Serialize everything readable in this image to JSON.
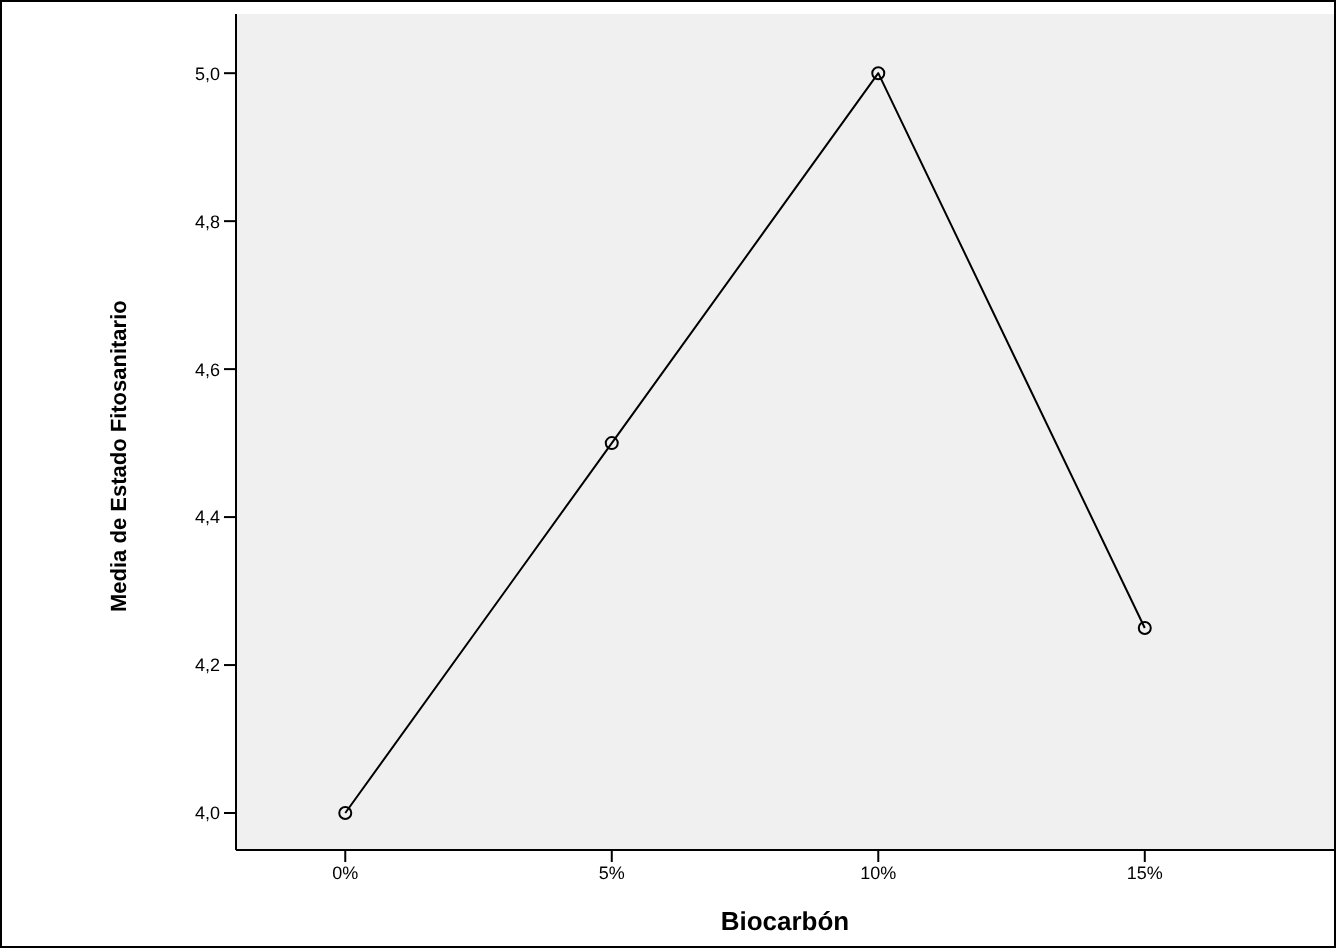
{
  "chart_data": {
    "type": "line",
    "xlabel": "Biocarbón",
    "ylabel": "Media de Estado Fitosanitario",
    "categories": [
      "0%",
      "5%",
      "10%",
      "15%"
    ],
    "series": [
      {
        "color": "#000000",
        "values": [
          4.0,
          4.5,
          5.0,
          4.25
        ]
      }
    ],
    "ylim": [
      3.95,
      5.08
    ],
    "yticks": [
      {
        "value": 4.0,
        "label": "4,0"
      },
      {
        "value": 4.2,
        "label": "4,2"
      },
      {
        "value": 4.4,
        "label": "4,4"
      },
      {
        "value": 4.6,
        "label": "4,6"
      },
      {
        "value": 4.8,
        "label": "4,8"
      },
      {
        "value": 5.0,
        "label": "5,0"
      }
    ],
    "grid": false,
    "legend": false,
    "marker": "circle",
    "line_style": "solid"
  }
}
